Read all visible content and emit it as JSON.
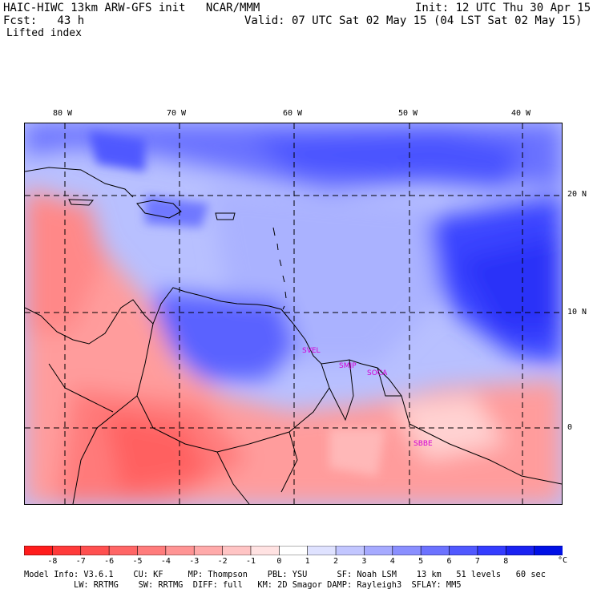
{
  "header": {
    "model_line": "HAIC-HIWC 13km ARW-GFS init   NCAR/MMM",
    "init": "Init: 12 UTC Thu 30 Apr 15",
    "fcst": "Fcst:   43 h",
    "valid": "Valid: 07 UTC Sat 02 May 15 (04 LST Sat 02 May 15)",
    "field": "Lifted index"
  },
  "map": {
    "lon_labels": [
      "80 W",
      "70 W",
      "60 W",
      "50 W",
      "40 W"
    ],
    "lat_labels": [
      "20 N",
      "10 N",
      "0"
    ],
    "cities": [
      "SVEL",
      "SMJP",
      "SOCA",
      "SBBE"
    ]
  },
  "colorbar": {
    "ticks": [
      "-8",
      "-7",
      "-6",
      "-5",
      "-4",
      "-3",
      "-2",
      "-1",
      "0",
      "1",
      "2",
      "3",
      "4",
      "5",
      "6",
      "7",
      "8"
    ],
    "unit": "°C",
    "colors": [
      "#ff1c1c",
      "#ff3a3a",
      "#ff5050",
      "#ff6666",
      "#ff7c7c",
      "#ff9494",
      "#ffaaaa",
      "#ffc4c4",
      "#ffe2e2",
      "#ffffff",
      "#dfe2ff",
      "#c2c6ff",
      "#a6aaff",
      "#8a8fff",
      "#6c72ff",
      "#5058ff",
      "#343cff",
      "#1a22f2",
      "#0010e6"
    ]
  },
  "footer": {
    "line1": "Model Info: V3.6.1    CU: KF     MP: Thompson    PBL: YSU      SF: Noah LSM    13 km   51 levels   60 sec",
    "line2": "          LW: RRTMG    SW: RRTMG  DIFF: full   KM: 2D Smagor DAMP: Rayleigh3  SFLAY: MM5"
  }
}
